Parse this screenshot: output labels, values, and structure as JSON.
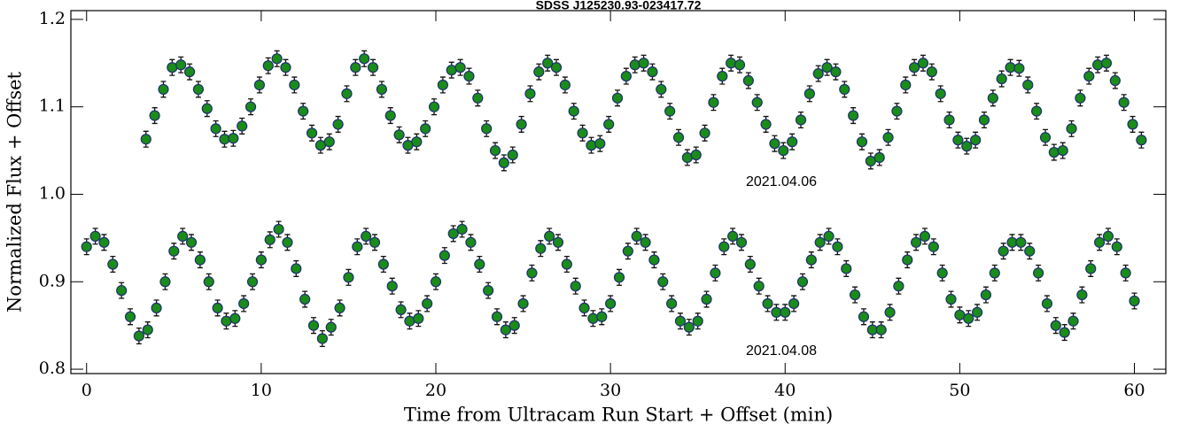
{
  "chart_data": {
    "type": "scatter",
    "title": "SDSS J125230.93-023417.72",
    "x_label": "Time from Ultracam Run Start + Offset (min)",
    "y_label": "Normalized Flux + Offset",
    "annotations": [
      "2021.04.06",
      "2021.04.08"
    ],
    "xlim": [
      -0.9,
      61.8
    ],
    "ylim": [
      0.795,
      1.21
    ],
    "xticks": [
      0,
      10,
      20,
      30,
      40,
      50,
      60
    ],
    "yticks": [
      0.8,
      0.9,
      {
        "value": 1,
        "label": "1.0"
      },
      1.1,
      1.2
    ],
    "marker_color": "#1a8c1a",
    "edge_color": "#1f2f6e",
    "series": [
      {
        "name": "2021.04.06",
        "yerr": 0.009,
        "x": [
          3.4,
          3.9,
          4.4,
          4.9,
          5.4,
          5.9,
          6.4,
          6.9,
          7.4,
          7.9,
          8.4,
          8.9,
          9.4,
          9.9,
          10.4,
          10.9,
          11.4,
          11.9,
          12.4,
          12.9,
          13.4,
          13.9,
          14.4,
          14.9,
          15.4,
          15.9,
          16.4,
          16.9,
          17.4,
          17.9,
          18.4,
          18.9,
          19.4,
          19.9,
          20.4,
          20.9,
          21.4,
          21.9,
          22.4,
          22.9,
          23.4,
          23.9,
          24.4,
          24.9,
          25.4,
          25.9,
          26.4,
          26.9,
          27.4,
          27.9,
          28.4,
          28.9,
          29.4,
          29.9,
          30.4,
          30.9,
          31.4,
          31.9,
          32.4,
          32.9,
          33.4,
          33.9,
          34.4,
          34.9,
          35.4,
          35.9,
          36.4,
          36.9,
          37.4,
          37.9,
          38.4,
          38.9,
          39.4,
          39.9,
          40.4,
          40.9,
          41.4,
          41.9,
          42.4,
          42.9,
          43.4,
          43.9,
          44.4,
          44.9,
          45.4,
          45.9,
          46.4,
          46.9,
          47.4,
          47.9,
          48.4,
          48.9,
          49.4,
          49.9,
          50.4,
          50.9,
          51.4,
          51.9,
          52.4,
          52.9,
          53.4,
          53.9,
          54.4,
          54.9,
          55.4,
          55.9,
          56.4,
          56.9,
          57.4,
          57.9,
          58.4,
          58.9,
          59.4,
          59.9,
          60.4
        ],
        "values": [
          1.063,
          1.09,
          1.12,
          1.145,
          1.148,
          1.14,
          1.12,
          1.098,
          1.075,
          1.063,
          1.064,
          1.078,
          1.1,
          1.125,
          1.147,
          1.155,
          1.145,
          1.125,
          1.095,
          1.07,
          1.056,
          1.06,
          1.08,
          1.115,
          1.145,
          1.155,
          1.145,
          1.12,
          1.09,
          1.068,
          1.056,
          1.06,
          1.075,
          1.1,
          1.125,
          1.142,
          1.145,
          1.135,
          1.11,
          1.075,
          1.05,
          1.036,
          1.045,
          1.08,
          1.115,
          1.14,
          1.15,
          1.145,
          1.125,
          1.095,
          1.07,
          1.056,
          1.058,
          1.08,
          1.11,
          1.135,
          1.148,
          1.15,
          1.14,
          1.12,
          1.095,
          1.065,
          1.042,
          1.045,
          1.07,
          1.105,
          1.135,
          1.15,
          1.148,
          1.13,
          1.105,
          1.08,
          1.058,
          1.05,
          1.06,
          1.085,
          1.115,
          1.138,
          1.145,
          1.14,
          1.12,
          1.09,
          1.06,
          1.038,
          1.042,
          1.065,
          1.095,
          1.125,
          1.145,
          1.15,
          1.14,
          1.115,
          1.085,
          1.062,
          1.055,
          1.062,
          1.085,
          1.11,
          1.132,
          1.145,
          1.144,
          1.125,
          1.095,
          1.065,
          1.048,
          1.05,
          1.075,
          1.11,
          1.135,
          1.148,
          1.15,
          1.13,
          1.105,
          1.08,
          1.062
        ]
      },
      {
        "name": "2021.04.08",
        "yerr": 0.009,
        "x": [
          0,
          0.5,
          1,
          1.5,
          2,
          2.5,
          3,
          3.5,
          4,
          4.5,
          5,
          5.5,
          6,
          6.5,
          7,
          7.5,
          8,
          8.5,
          9,
          9.5,
          10,
          10.5,
          11,
          11.5,
          12,
          12.5,
          13,
          13.5,
          14,
          14.5,
          15,
          15.5,
          16,
          16.5,
          17,
          17.5,
          18,
          18.5,
          19,
          19.5,
          20,
          20.5,
          21,
          21.5,
          22,
          22.5,
          23,
          23.5,
          24,
          24.5,
          25,
          25.5,
          26,
          26.5,
          27,
          27.5,
          28,
          28.5,
          29,
          29.5,
          30,
          30.5,
          31,
          31.5,
          32,
          32.5,
          33,
          33.5,
          34,
          34.5,
          35,
          35.5,
          36,
          36.5,
          37,
          37.5,
          38,
          38.5,
          39,
          39.5,
          40,
          40.5,
          41,
          41.5,
          42,
          42.5,
          43,
          43.5,
          44,
          44.5,
          45,
          45.5,
          46,
          46.5,
          47,
          47.5,
          48,
          48.5,
          49,
          49.5,
          50,
          50.5,
          51,
          51.5,
          52,
          52.5,
          53,
          53.5,
          54,
          54.5,
          55,
          55.5,
          56,
          56.5,
          57,
          57.5,
          58,
          58.5,
          59,
          59.5,
          60
        ],
        "values": [
          0.94,
          0.952,
          0.945,
          0.92,
          0.89,
          0.86,
          0.838,
          0.845,
          0.87,
          0.9,
          0.935,
          0.952,
          0.945,
          0.925,
          0.9,
          0.87,
          0.855,
          0.858,
          0.875,
          0.9,
          0.925,
          0.948,
          0.96,
          0.945,
          0.915,
          0.88,
          0.85,
          0.835,
          0.848,
          0.87,
          0.905,
          0.94,
          0.952,
          0.945,
          0.92,
          0.895,
          0.868,
          0.855,
          0.858,
          0.875,
          0.9,
          0.93,
          0.955,
          0.96,
          0.945,
          0.92,
          0.89,
          0.86,
          0.845,
          0.85,
          0.875,
          0.91,
          0.938,
          0.952,
          0.945,
          0.92,
          0.895,
          0.87,
          0.858,
          0.86,
          0.875,
          0.905,
          0.935,
          0.952,
          0.945,
          0.925,
          0.9,
          0.875,
          0.855,
          0.848,
          0.855,
          0.88,
          0.91,
          0.94,
          0.952,
          0.945,
          0.92,
          0.895,
          0.875,
          0.865,
          0.865,
          0.875,
          0.9,
          0.925,
          0.945,
          0.952,
          0.94,
          0.915,
          0.885,
          0.86,
          0.845,
          0.845,
          0.865,
          0.895,
          0.925,
          0.945,
          0.952,
          0.94,
          0.91,
          0.88,
          0.862,
          0.858,
          0.865,
          0.885,
          0.91,
          0.935,
          0.945,
          0.945,
          0.935,
          0.91,
          0.875,
          0.85,
          0.842,
          0.855,
          0.885,
          0.915,
          0.945,
          0.952,
          0.94,
          0.91,
          0.878
        ]
      }
    ]
  }
}
